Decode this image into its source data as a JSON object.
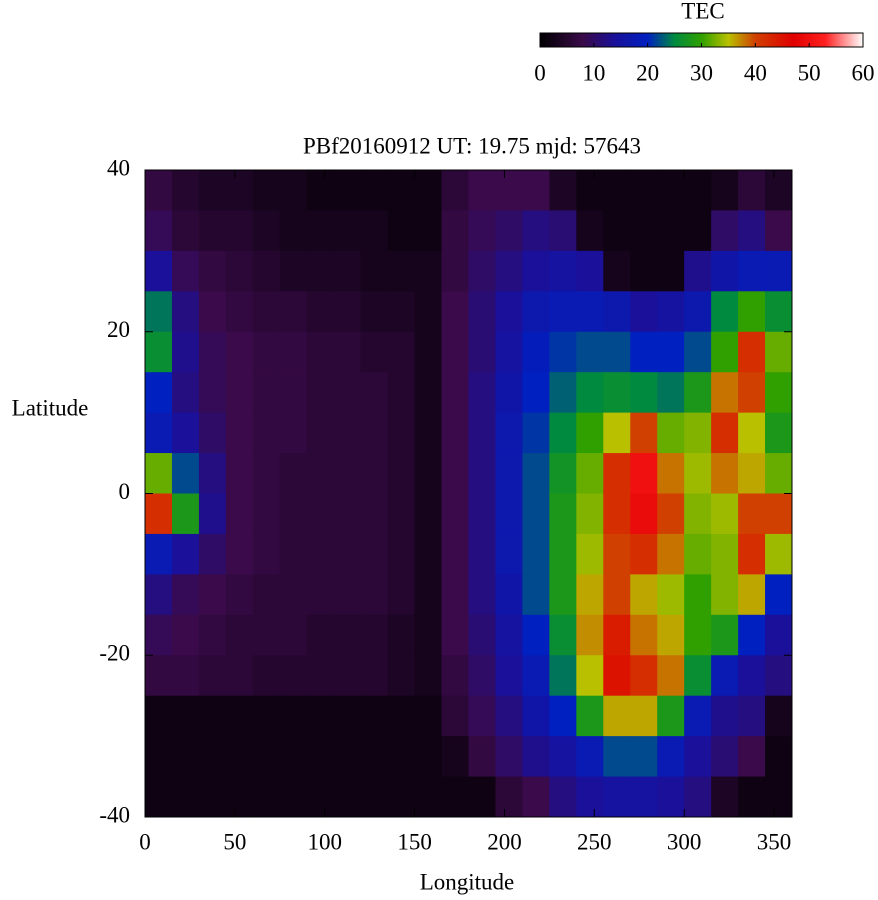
{
  "chart_data": {
    "type": "heatmap",
    "title": "PBf20160912  UT: 19.75  mjd: 57643",
    "x_label": "Longitude",
    "y_label": "Latitude",
    "colorbar_label": "TEC",
    "x": [
      7.5,
      22.5,
      37.5,
      52.5,
      67.5,
      82.5,
      97.5,
      112.5,
      127.5,
      142.5,
      157.5,
      172.5,
      187.5,
      202.5,
      217.5,
      232.5,
      247.5,
      262.5,
      277.5,
      292.5,
      307.5,
      322.5,
      337.5,
      352.5
    ],
    "y": [
      37.5,
      32.5,
      27.5,
      22.5,
      17.5,
      12.5,
      7.5,
      2.5,
      -2.5,
      -7.5,
      -12.5,
      -17.5,
      -22.5,
      -27.5,
      -32.5,
      -37.5
    ],
    "z": [
      [
        7,
        5,
        4,
        4,
        3,
        3,
        2,
        2,
        2,
        2,
        2,
        6,
        8,
        8,
        8,
        4,
        2,
        2,
        2,
        2,
        2,
        3,
        6,
        4
      ],
      [
        9,
        6,
        5,
        5,
        4,
        3,
        3,
        3,
        3,
        2,
        2,
        7,
        9,
        10,
        12,
        11,
        3,
        2,
        2,
        2,
        2,
        10,
        12,
        8
      ],
      [
        14,
        9,
        7,
        6,
        5,
        4,
        4,
        4,
        3,
        3,
        3,
        7,
        10,
        12,
        14,
        15,
        14,
        3,
        2,
        2,
        13,
        16,
        18,
        18
      ],
      [
        24,
        12,
        8,
        7,
        6,
        6,
        5,
        5,
        4,
        4,
        3,
        8,
        11,
        14,
        17,
        18,
        18,
        17,
        14,
        15,
        17,
        25,
        30,
        26
      ],
      [
        26,
        13,
        9,
        8,
        7,
        7,
        6,
        6,
        5,
        5,
        3,
        8,
        11,
        15,
        19,
        21,
        22,
        22,
        20,
        20,
        22,
        30,
        42,
        32
      ],
      [
        20,
        12,
        9,
        8,
        7,
        7,
        6,
        6,
        6,
        5,
        3,
        8,
        12,
        16,
        20,
        23,
        25,
        26,
        25,
        24,
        28,
        38,
        40,
        30
      ],
      [
        18,
        14,
        10,
        8,
        7,
        7,
        6,
        6,
        6,
        5,
        3,
        8,
        12,
        17,
        21,
        25,
        30,
        35,
        40,
        32,
        33,
        42,
        35,
        28
      ],
      [
        32,
        22,
        12,
        8,
        7,
        6,
        6,
        6,
        6,
        5,
        3,
        8,
        12,
        17,
        22,
        27,
        32,
        42,
        50,
        38,
        34,
        38,
        36,
        32
      ],
      [
        42,
        28,
        13,
        8,
        7,
        6,
        6,
        6,
        6,
        5,
        3,
        8,
        12,
        17,
        22,
        28,
        33,
        42,
        49,
        40,
        33,
        34,
        40,
        40
      ],
      [
        18,
        14,
        10,
        8,
        7,
        6,
        6,
        6,
        6,
        5,
        3,
        8,
        12,
        17,
        22,
        28,
        34,
        40,
        42,
        38,
        32,
        33,
        42,
        34
      ],
      [
        12,
        9,
        8,
        7,
        6,
        6,
        6,
        6,
        6,
        5,
        3,
        8,
        12,
        16,
        22,
        28,
        36,
        40,
        36,
        34,
        30,
        33,
        36,
        20
      ],
      [
        9,
        8,
        7,
        6,
        6,
        6,
        5,
        5,
        5,
        4,
        3,
        8,
        11,
        15,
        20,
        26,
        37,
        44,
        38,
        36,
        30,
        28,
        20,
        14
      ],
      [
        7,
        7,
        6,
        6,
        5,
        5,
        5,
        5,
        5,
        4,
        3,
        7,
        10,
        14,
        18,
        24,
        35,
        45,
        42,
        38,
        26,
        18,
        14,
        12
      ],
      [
        2,
        2,
        2,
        2,
        2,
        2,
        2,
        2,
        2,
        2,
        2,
        6,
        9,
        12,
        16,
        20,
        28,
        36,
        36,
        28,
        18,
        13,
        12,
        3
      ],
      [
        2,
        2,
        2,
        2,
        2,
        2,
        2,
        2,
        2,
        2,
        2,
        3,
        7,
        10,
        13,
        15,
        18,
        22,
        22,
        18,
        14,
        11,
        8,
        2
      ],
      [
        2,
        2,
        2,
        2,
        2,
        2,
        2,
        2,
        2,
        2,
        2,
        2,
        2,
        6,
        8,
        12,
        14,
        15,
        15,
        14,
        12,
        4,
        2,
        2
      ]
    ],
    "xlim": [
      0,
      360
    ],
    "xticks": [
      0,
      50,
      100,
      150,
      200,
      250,
      300,
      350
    ],
    "ylim": [
      -40,
      40
    ],
    "yticks": [
      -40,
      -20,
      0,
      20,
      40
    ],
    "zlim": [
      0,
      60
    ],
    "zticks": [
      0,
      10,
      20,
      30,
      40,
      50,
      60
    ],
    "colormap": [
      [
        0,
        "#000000"
      ],
      [
        8,
        "#3a0a4a"
      ],
      [
        14,
        "#1a109a"
      ],
      [
        20,
        "#0020c0"
      ],
      [
        25,
        "#008a40"
      ],
      [
        30,
        "#30a000"
      ],
      [
        35,
        "#b8c000"
      ],
      [
        40,
        "#d04000"
      ],
      [
        47,
        "#e00000"
      ],
      [
        53,
        "#ff2020"
      ],
      [
        60,
        "#ffffff"
      ]
    ]
  }
}
